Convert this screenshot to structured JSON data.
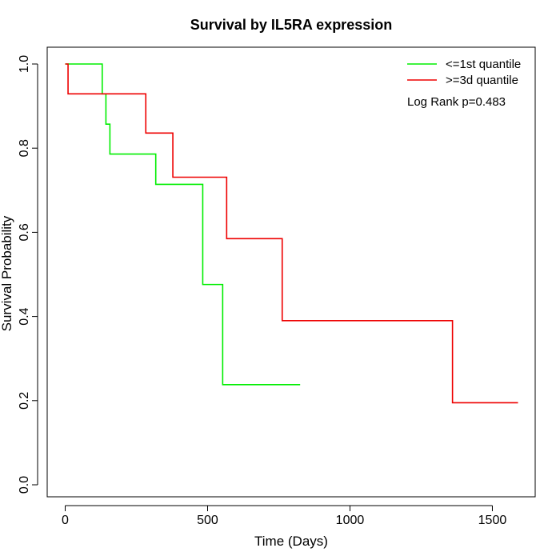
{
  "chart_data": {
    "type": "line",
    "title": "Survival by IL5RA expression",
    "xlabel": "Time (Days)",
    "ylabel": "Survival Probability",
    "xlim": [
      0,
      1590
    ],
    "ylim": [
      0,
      1
    ],
    "xticks": [
      0,
      500,
      1000,
      1500
    ],
    "yticks": [
      0.0,
      0.2,
      0.4,
      0.6,
      0.8,
      1.0
    ],
    "ytick_labels": [
      "0.0",
      "0.2",
      "0.4",
      "0.6",
      "0.8",
      "1.0"
    ],
    "xtick_labels": [
      "0",
      "500",
      "1000",
      "1500"
    ],
    "legend_position": "top-right",
    "annotation": "Log Rank p=0.483",
    "series": [
      {
        "name": "<=1st quantile",
        "color": "#00ee00",
        "step": true,
        "x": [
          0,
          130,
          143,
          157,
          318,
          483,
          553,
          825
        ],
        "y": [
          1.0,
          0.929,
          0.857,
          0.786,
          0.714,
          0.476,
          0.238,
          0.238
        ]
      },
      {
        "name": ">=3d quantile",
        "color": "#ee0000",
        "step": true,
        "x": [
          0,
          10,
          283,
          378,
          567,
          762,
          1360,
          1590
        ],
        "y": [
          1.0,
          0.929,
          0.836,
          0.731,
          0.585,
          0.39,
          0.195,
          0.195
        ]
      }
    ]
  }
}
